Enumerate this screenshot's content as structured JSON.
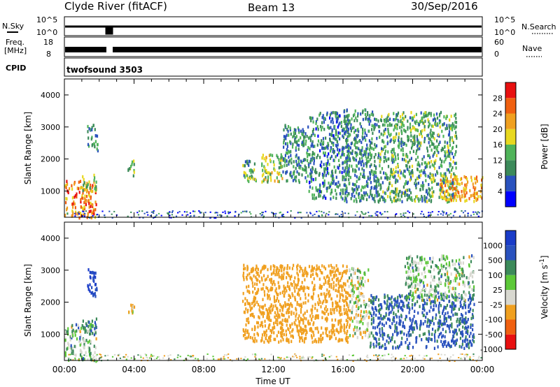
{
  "header": {
    "station": "Clyde River (fitACF)",
    "beam": "Beam 13",
    "date": "30/Sep/2016"
  },
  "status_panels": {
    "nsky": {
      "label": "N.Sky",
      "tick_top": "10^5",
      "tick_bottom": "10^0"
    },
    "nsearch": {
      "label": "N.Search",
      "tick_top": "10^5",
      "tick_bottom": "10^0"
    },
    "freq": {
      "label_line1": "Freq.",
      "label_line2": "[MHz]",
      "tick_top": "18",
      "tick_bottom": "8"
    },
    "nave": {
      "label": "Nave",
      "tick_top": "60",
      "tick_bottom": "0"
    },
    "cpid": {
      "label": "CPID",
      "value": "twofsound 3503"
    }
  },
  "colors": {
    "power": [
      "#0000ff",
      "#2a52be",
      "#3c8a5a",
      "#50b45a",
      "#e8d820",
      "#f0a020",
      "#f06010",
      "#e81010"
    ],
    "velocity": [
      "#e81010",
      "#f06010",
      "#f0a020",
      "#d8d8d0",
      "#5cc838",
      "#3c8a5a",
      "#2a52be",
      "#1a3cc8"
    ]
  },
  "chart_data": [
    {
      "type": "heatmap",
      "name": "power",
      "xlabel": "",
      "ylabel": "Slant Range [km]",
      "xlim": [
        0,
        24
      ],
      "ylim": [
        180,
        4500
      ],
      "y_ticks": [
        "1000",
        "2000",
        "3000",
        "4000"
      ],
      "colorbar": {
        "label": "Power [dB]",
        "ticks": [
          "4",
          "8",
          "12",
          "16",
          "20",
          "24",
          "28"
        ],
        "range": [
          0,
          32
        ]
      },
      "echo_regions": [
        {
          "t": [
            0.0,
            1.8
          ],
          "r": [
            200,
            1350
          ],
          "level": 24
        },
        {
          "t": [
            1.0,
            1.8
          ],
          "r": [
            1050,
            1550
          ],
          "level": 14
        },
        {
          "t": [
            1.3,
            1.9
          ],
          "r": [
            2200,
            3100
          ],
          "level": 10
        },
        {
          "t": [
            3.6,
            4.0
          ],
          "r": [
            1500,
            2000
          ],
          "level": 14
        },
        {
          "t": [
            10.2,
            11.0
          ],
          "r": [
            1300,
            2000
          ],
          "level": 12
        },
        {
          "t": [
            11.3,
            12.5
          ],
          "r": [
            1300,
            2200
          ],
          "level": 16
        },
        {
          "t": [
            12.5,
            14.0
          ],
          "r": [
            1300,
            3100
          ],
          "level": 10
        },
        {
          "t": [
            14.0,
            16.3
          ],
          "r": [
            800,
            3500
          ],
          "level": 9
        },
        {
          "t": [
            16.0,
            18.0
          ],
          "r": [
            700,
            3600
          ],
          "level": 10
        },
        {
          "t": [
            18.0,
            22.5
          ],
          "r": [
            700,
            3500
          ],
          "level": 12
        },
        {
          "t": [
            21.5,
            24.0
          ],
          "r": [
            700,
            1500
          ],
          "level": 22
        },
        {
          "t": [
            0.0,
            24.0
          ],
          "r": [
            180,
            400
          ],
          "level": 7
        }
      ]
    },
    {
      "type": "heatmap",
      "name": "velocity",
      "xlabel": "Time UT",
      "ylabel": "Slant Range [km]",
      "xlim": [
        0,
        24
      ],
      "ylim": [
        180,
        4500
      ],
      "x_ticks": [
        "00:00",
        "04:00",
        "08:00",
        "12:00",
        "16:00",
        "20:00",
        "00:00"
      ],
      "y_ticks": [
        "1000",
        "2000",
        "3000",
        "4000"
      ],
      "colorbar": {
        "label": "Velocity [m s^-1]",
        "ticks": [
          "1000",
          "500",
          "100",
          "25",
          "-25",
          "-100",
          "-500",
          "-1000"
        ]
      },
      "echo_regions": [
        {
          "t": [
            0.0,
            1.8
          ],
          "r": [
            200,
            1350
          ],
          "velocity": 0
        },
        {
          "t": [
            1.0,
            1.8
          ],
          "r": [
            1050,
            1550
          ],
          "velocity": 100
        },
        {
          "t": [
            1.3,
            1.9
          ],
          "r": [
            2200,
            3100
          ],
          "velocity": 500
        },
        {
          "t": [
            3.6,
            4.0
          ],
          "r": [
            1500,
            2000
          ],
          "velocity": -100
        },
        {
          "t": [
            10.2,
            16.3
          ],
          "r": [
            800,
            3200
          ],
          "velocity": -300
        },
        {
          "t": [
            16.3,
            17.5
          ],
          "r": [
            900,
            3100
          ],
          "velocity": -50
        },
        {
          "t": [
            17.5,
            23.5
          ],
          "r": [
            600,
            2300
          ],
          "velocity": 150
        },
        {
          "t": [
            19.5,
            23.5
          ],
          "r": [
            2100,
            3500
          ],
          "velocity": 0
        },
        {
          "t": [
            0.0,
            24.0
          ],
          "r": [
            180,
            400
          ],
          "velocity": -60
        }
      ]
    }
  ]
}
